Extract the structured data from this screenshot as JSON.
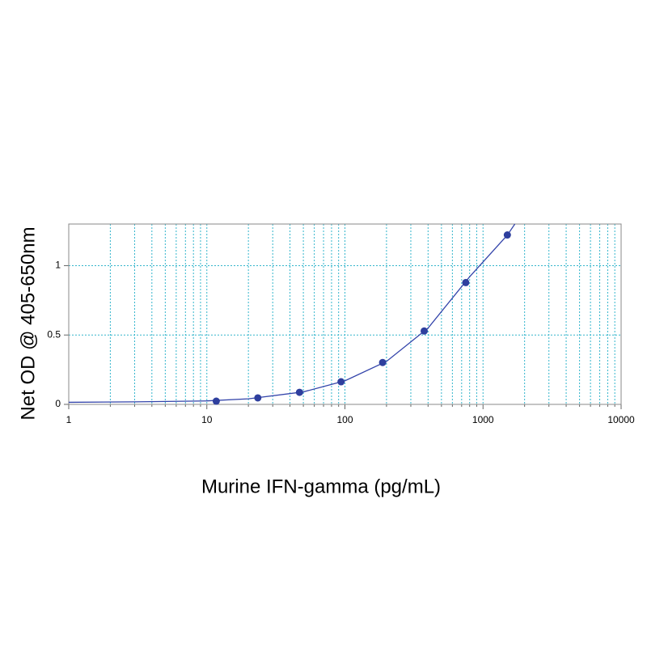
{
  "chart_data": {
    "type": "scatter",
    "x_label": "Murine IFN-gamma (pg/mL)",
    "y_label": "Net OD @ 405-650nm",
    "x": [
      11.7,
      23.4,
      46.9,
      93.75,
      187.5,
      375,
      750,
      1500
    ],
    "values": [
      0.023,
      0.047,
      0.087,
      0.163,
      0.302,
      0.529,
      0.878,
      1.221
    ],
    "color": "#2e3f9e",
    "fit": {
      "x": [
        1,
        3,
        10,
        20,
        50,
        100,
        200,
        400,
        800,
        1500,
        1700
      ],
      "values": [
        0.015,
        0.018,
        0.025,
        0.04,
        0.09,
        0.17,
        0.31,
        0.55,
        0.92,
        1.22,
        1.3
      ],
      "color": "#3344aa"
    },
    "xscale": "log",
    "xlim": [
      1,
      10000
    ],
    "ylim": [
      0,
      1.3
    ],
    "xticks": [
      1,
      10,
      100,
      1000,
      10000
    ],
    "xminorticks": [
      2,
      3,
      4,
      5,
      6,
      7,
      8,
      9,
      20,
      30,
      40,
      50,
      60,
      70,
      80,
      90,
      200,
      300,
      400,
      500,
      600,
      700,
      800,
      900,
      2000,
      3000,
      4000,
      5000,
      6000,
      7000,
      8000,
      9000
    ],
    "yticks": [
      0,
      0.5,
      1
    ],
    "grid": true,
    "grid_color": "#33b5cc"
  }
}
